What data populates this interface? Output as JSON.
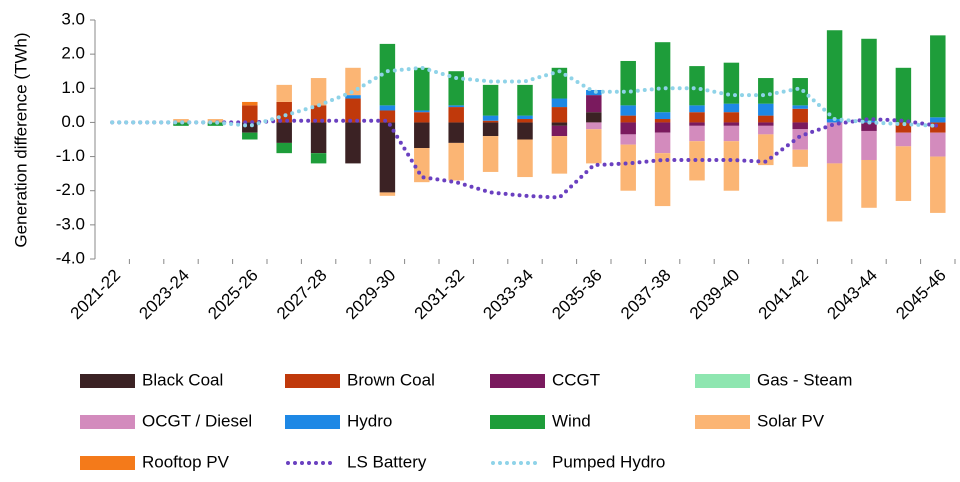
{
  "chart_data": {
    "type": "bar",
    "stacked": true,
    "y_label": "Generation difference (TWh)",
    "categories": [
      "2021-22",
      null,
      "2023-24",
      null,
      "2025-26",
      null,
      "2027-28",
      null,
      "2029-30",
      null,
      "2031-32",
      null,
      "2033-34",
      null,
      "2035-36",
      null,
      "2037-38",
      null,
      "2039-40",
      null,
      "2041-42",
      null,
      "2043-44",
      null,
      "2045-46"
    ],
    "ylim": [
      -4,
      3
    ],
    "yticks": [
      {
        "value": -4,
        "label": "-4.0"
      },
      {
        "value": -3,
        "label": "-3.0"
      },
      {
        "value": -2,
        "label": "-2.0"
      },
      {
        "value": -1,
        "label": "-1.0"
      },
      {
        "value": 0,
        "label": "0.0"
      },
      {
        "value": 1,
        "label": "1.0"
      },
      {
        "value": 2,
        "label": "2.0"
      },
      {
        "value": 3,
        "label": "3.0"
      }
    ],
    "series": [
      {
        "name": "Black Coal",
        "color": "#3b2224",
        "values": [
          0,
          0,
          0,
          0,
          -0.3,
          -0.6,
          -0.9,
          -1.2,
          -2.05,
          -0.75,
          -0.6,
          -0.4,
          -0.5,
          -0.1,
          0.3,
          0,
          0,
          0,
          0,
          0,
          0,
          0,
          0,
          0,
          0
        ]
      },
      {
        "name": "Brown Coal",
        "color": "#c0390b",
        "values": [
          0,
          0,
          0,
          0,
          0.5,
          0.6,
          0.5,
          0.7,
          0.35,
          0.3,
          0.45,
          0.05,
          0.1,
          0.45,
          0,
          0.2,
          0.1,
          0.3,
          0.3,
          0.2,
          0.4,
          0,
          0,
          -0.3,
          -0.3
        ]
      },
      {
        "name": "CCGT",
        "color": "#7a1a5e",
        "values": [
          0,
          0,
          0,
          0,
          0,
          0,
          0,
          0,
          0,
          0,
          0,
          0,
          0,
          -0.3,
          0.5,
          -0.35,
          -0.3,
          -0.1,
          -0.1,
          -0.1,
          -0.2,
          0,
          -0.25,
          0,
          0
        ]
      },
      {
        "name": "Gas - Steam",
        "color": "#8ee6b0",
        "values": [
          0,
          0,
          0,
          0,
          0,
          0,
          0,
          0,
          0,
          0,
          0,
          0,
          0,
          0,
          0,
          0,
          0,
          0,
          0,
          0,
          0,
          0,
          0,
          0,
          0
        ]
      },
      {
        "name": "OCGT / Diesel",
        "color": "#d38bbd",
        "values": [
          0,
          0,
          0,
          0,
          0,
          0,
          0,
          0,
          0,
          0,
          0,
          0,
          0,
          0,
          -0.2,
          -0.3,
          -0.6,
          -0.45,
          -0.45,
          -0.25,
          -0.6,
          -1.2,
          -0.85,
          -0.4,
          -0.7
        ]
      },
      {
        "name": "Hydro",
        "color": "#1e88e5",
        "values": [
          0,
          0,
          0,
          0,
          0,
          0,
          0,
          0.1,
          0.15,
          0.05,
          0.05,
          0.15,
          0.1,
          0.25,
          0.15,
          0.3,
          0.2,
          0.2,
          0.25,
          0.35,
          0.1,
          0.1,
          0.05,
          0,
          0.15
        ]
      },
      {
        "name": "Wind",
        "color": "#1e9d3a",
        "values": [
          0,
          0,
          -0.1,
          -0.1,
          -0.2,
          -0.3,
          -0.3,
          0,
          1.8,
          1.25,
          1.0,
          0.9,
          0.9,
          0.9,
          0,
          1.3,
          2.05,
          1.15,
          1.2,
          0.75,
          0.8,
          2.6,
          2.4,
          1.6,
          2.4
        ]
      },
      {
        "name": "Solar PV",
        "color": "#fbb574",
        "values": [
          0,
          0,
          0.1,
          0.1,
          0,
          0.5,
          0.8,
          0.8,
          -0.1,
          -1.0,
          -1.1,
          -1.05,
          -1.1,
          -1.1,
          -1.0,
          -1.35,
          -1.55,
          -1.15,
          -1.45,
          -0.9,
          -0.5,
          -1.7,
          -1.4,
          -1.6,
          -1.65
        ]
      },
      {
        "name": "Rooftop PV",
        "color": "#f47a1a",
        "values": [
          0,
          0,
          0,
          0,
          0.1,
          0,
          0,
          0,
          0,
          0,
          0,
          0,
          0,
          0,
          0,
          0,
          0,
          0,
          0,
          0,
          0,
          0,
          0,
          0,
          0
        ]
      },
      {
        "name": "LS Battery",
        "color": "#6a40c0",
        "type": "line",
        "values": [
          0,
          0,
          0,
          0,
          0,
          0.05,
          0.05,
          0.05,
          0.05,
          -1.6,
          -1.75,
          -2.05,
          -2.15,
          -2.2,
          -1.25,
          -1.2,
          -1.1,
          -1.1,
          -1.1,
          -1.15,
          -0.4,
          -0.05,
          0.1,
          0.05,
          -0.1
        ]
      },
      {
        "name": "Pumped Hydro",
        "color": "#8fd3e8",
        "type": "line",
        "values": [
          0,
          0,
          0,
          0,
          -0.1,
          0.2,
          0.5,
          0.9,
          1.5,
          1.6,
          1.3,
          1.2,
          1.2,
          1.5,
          0.9,
          0.9,
          1.0,
          1.0,
          0.8,
          0.8,
          1.0,
          0.1,
          0,
          -0.05,
          -0.1
        ]
      }
    ]
  }
}
